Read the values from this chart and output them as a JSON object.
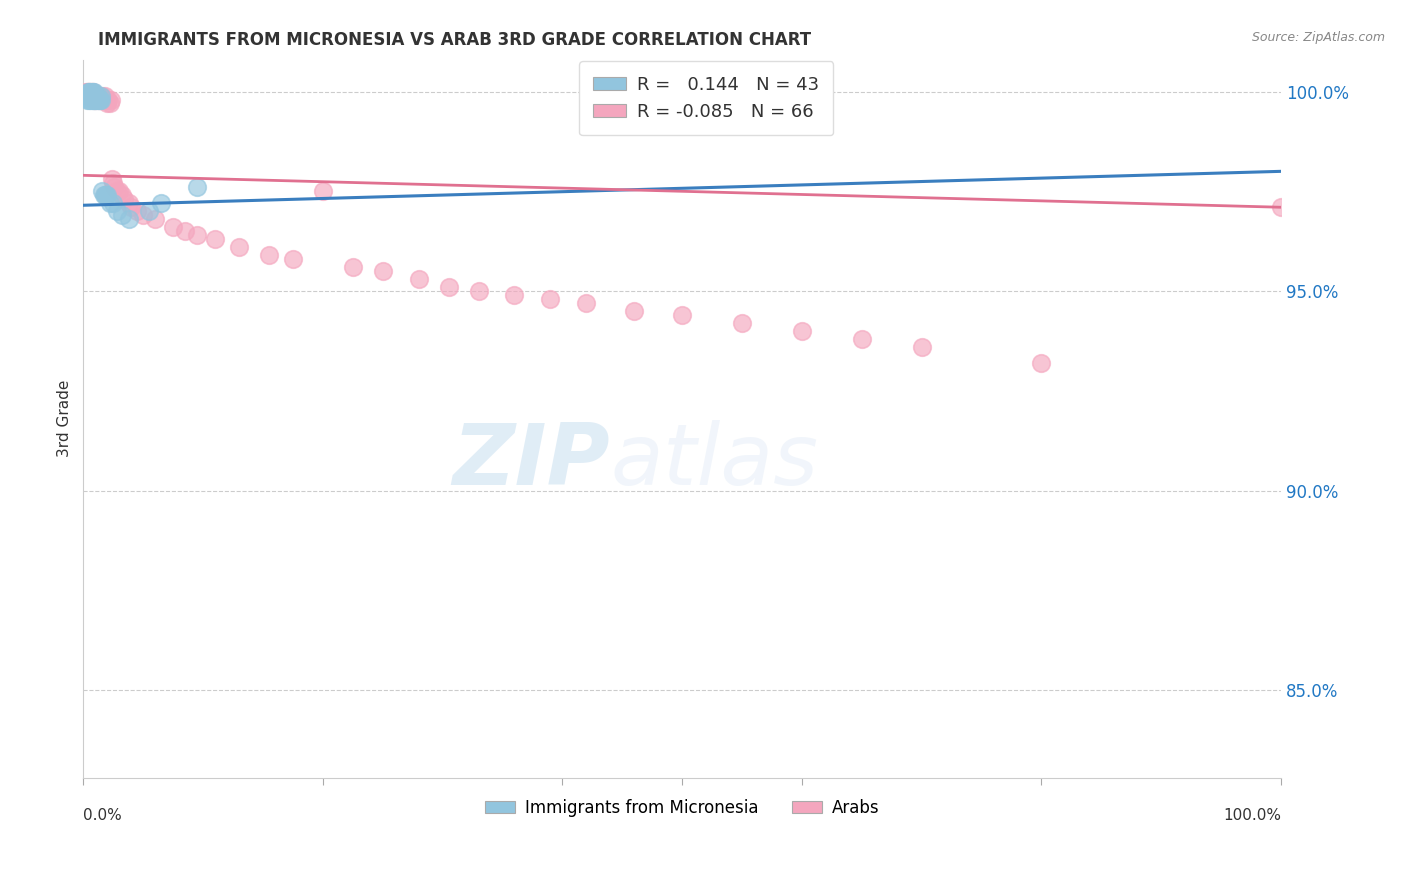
{
  "title": "IMMIGRANTS FROM MICRONESIA VS ARAB 3RD GRADE CORRELATION CHART",
  "source": "Source: ZipAtlas.com",
  "ylabel": "3rd Grade",
  "ytick_vals": [
    1.0,
    0.95,
    0.9,
    0.85
  ],
  "ytick_labels": [
    "100.0%",
    "95.0%",
    "90.0%",
    "85.0%"
  ],
  "xlim": [
    0.0,
    1.0
  ],
  "ylim": [
    0.828,
    1.008
  ],
  "micronesia_R": 0.144,
  "micronesia_N": 43,
  "arab_R": -0.085,
  "arab_N": 66,
  "micronesia_color": "#92c5de",
  "arab_color": "#f4a6be",
  "micronesia_line_color": "#3a7ebf",
  "arab_line_color": "#e07090",
  "watermark_zip": "ZIP",
  "watermark_atlas": "atlas",
  "micronesia_x": [
    0.002,
    0.003,
    0.003,
    0.004,
    0.004,
    0.005,
    0.005,
    0.005,
    0.006,
    0.006,
    0.006,
    0.007,
    0.007,
    0.007,
    0.008,
    0.008,
    0.008,
    0.009,
    0.009,
    0.009,
    0.01,
    0.01,
    0.011,
    0.011,
    0.012,
    0.012,
    0.013,
    0.014,
    0.015,
    0.015,
    0.016,
    0.017,
    0.018,
    0.019,
    0.02,
    0.022,
    0.025,
    0.028,
    0.032,
    0.038,
    0.055,
    0.065,
    0.095
  ],
  "micronesia_y": [
    0.999,
    0.999,
    0.998,
    1.0,
    0.999,
    1.0,
    0.999,
    0.998,
    1.0,
    0.999,
    0.998,
    1.0,
    0.999,
    0.998,
    1.0,
    0.999,
    0.998,
    1.0,
    0.999,
    0.998,
    0.999,
    0.998,
    0.999,
    0.998,
    0.999,
    0.998,
    0.998,
    0.998,
    0.999,
    0.998,
    0.975,
    0.974,
    0.974,
    0.974,
    0.974,
    0.972,
    0.972,
    0.97,
    0.969,
    0.968,
    0.97,
    0.972,
    0.976
  ],
  "arab_x": [
    0.002,
    0.003,
    0.003,
    0.004,
    0.004,
    0.005,
    0.005,
    0.006,
    0.006,
    0.007,
    0.007,
    0.008,
    0.008,
    0.009,
    0.009,
    0.01,
    0.01,
    0.011,
    0.012,
    0.013,
    0.014,
    0.015,
    0.016,
    0.017,
    0.018,
    0.019,
    0.02,
    0.021,
    0.022,
    0.023,
    0.024,
    0.025,
    0.026,
    0.028,
    0.03,
    0.032,
    0.034,
    0.038,
    0.04,
    0.045,
    0.05,
    0.06,
    0.075,
    0.085,
    0.095,
    0.11,
    0.13,
    0.155,
    0.175,
    0.2,
    0.225,
    0.25,
    0.28,
    0.305,
    0.33,
    0.36,
    0.39,
    0.42,
    0.46,
    0.5,
    0.55,
    0.6,
    0.65,
    0.7,
    0.8,
    1.0
  ],
  "arab_y": [
    1.0,
    1.0,
    0.999,
    1.0,
    0.999,
    1.0,
    0.999,
    1.0,
    0.999,
    1.0,
    0.999,
    1.0,
    0.999,
    0.998,
    0.999,
    0.999,
    0.998,
    0.999,
    0.998,
    0.999,
    0.998,
    0.998,
    0.999,
    0.998,
    0.999,
    0.998,
    0.997,
    0.998,
    0.997,
    0.998,
    0.978,
    0.977,
    0.976,
    0.975,
    0.975,
    0.974,
    0.973,
    0.972,
    0.971,
    0.97,
    0.969,
    0.968,
    0.966,
    0.965,
    0.964,
    0.963,
    0.961,
    0.959,
    0.958,
    0.975,
    0.956,
    0.955,
    0.953,
    0.951,
    0.95,
    0.949,
    0.948,
    0.947,
    0.945,
    0.944,
    0.942,
    0.94,
    0.938,
    0.936,
    0.932,
    0.971
  ],
  "mic_line_x0": 0.0,
  "mic_line_y0": 0.9715,
  "mic_line_x1": 1.0,
  "mic_line_y1": 0.98,
  "arab_line_x0": 0.0,
  "arab_line_y0": 0.979,
  "arab_line_x1": 1.0,
  "arab_line_y1": 0.971
}
